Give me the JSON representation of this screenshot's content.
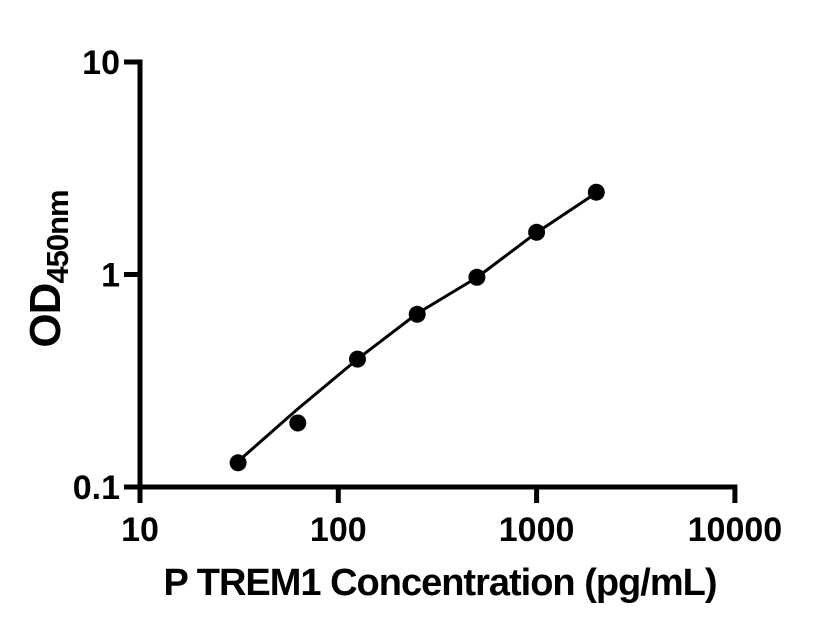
{
  "figure": {
    "background": "#ffffff",
    "ink_color": "#000000"
  },
  "chart_data": {
    "type": "scatter",
    "subtype": "standard-curve-with-fit-line",
    "title": "",
    "xlabel": "P TREM1 Concentration (pg/mL)",
    "ylabel_main": "OD",
    "ylabel_sub": "450nm",
    "x_scale": "log",
    "y_scale": "log",
    "xlim": [
      10,
      10000
    ],
    "ylim": [
      0.1,
      10
    ],
    "x_ticks": [
      {
        "value": 10,
        "label": "10"
      },
      {
        "value": 100,
        "label": "100"
      },
      {
        "value": 1000,
        "label": "1000"
      },
      {
        "value": 10000,
        "label": "10000"
      }
    ],
    "y_ticks": [
      {
        "value": 0.1,
        "label": "0.1"
      },
      {
        "value": 1,
        "label": "1"
      },
      {
        "value": 10,
        "label": "10"
      }
    ],
    "points": [
      {
        "x": 31.25,
        "y": 0.13
      },
      {
        "x": 62.5,
        "y": 0.2
      },
      {
        "x": 125,
        "y": 0.4
      },
      {
        "x": 250,
        "y": 0.65
      },
      {
        "x": 500,
        "y": 0.97
      },
      {
        "x": 1000,
        "y": 1.58
      },
      {
        "x": 2000,
        "y": 2.44
      }
    ],
    "fit_line": [
      {
        "x": 31.25,
        "y": 0.132
      },
      {
        "x": 62.5,
        "y": 0.233
      },
      {
        "x": 125,
        "y": 0.4
      },
      {
        "x": 250,
        "y": 0.655
      },
      {
        "x": 500,
        "y": 0.968
      },
      {
        "x": 1000,
        "y": 1.575
      },
      {
        "x": 2000,
        "y": 2.42
      }
    ],
    "marker": {
      "shape": "circle",
      "radius": 8.5,
      "color": "#000000"
    },
    "grid": false,
    "legend": "none"
  }
}
